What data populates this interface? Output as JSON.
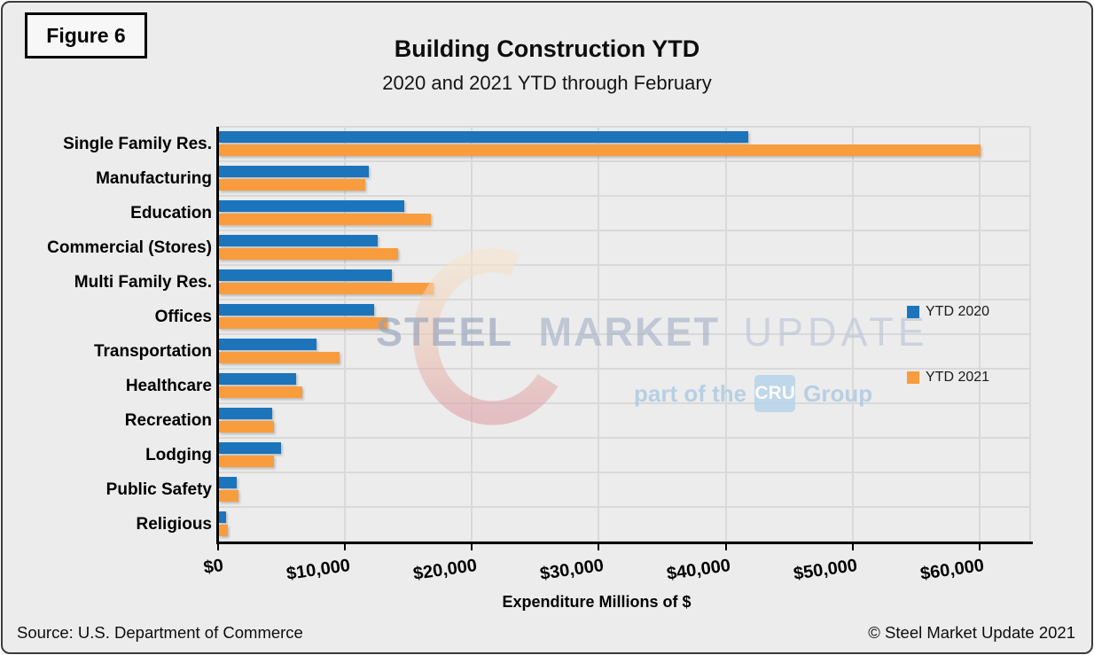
{
  "figure_label": "Figure 6",
  "title": "Building Construction YTD",
  "subtitle": "2020 and 2021 YTD through February",
  "source_note": "Source: U.S. Department of Commerce",
  "copyright_note": "© Steel Market Update 2021",
  "watermark": {
    "word1": "STEEL",
    "word2": "MARKET",
    "word3": "UPDATE",
    "tagline_prefix": "part of the",
    "tagline_badge": "CRU",
    "tagline_suffix": "Group"
  },
  "colors": {
    "ytd2020_blue": "#1C74BB",
    "ytd2021_orange": "#F99C3D",
    "background": "#ECECEC",
    "gridline": "#D9D9D9",
    "axis": "#000000"
  },
  "legend": [
    {
      "label": "YTD 2020",
      "color": "#1C74BB"
    },
    {
      "label": "YTD 2021",
      "color": "#F99C3D"
    }
  ],
  "chart_data": {
    "type": "bar",
    "orientation": "horizontal",
    "title": "Building Construction YTD",
    "subtitle": "2020 and 2021 YTD through February",
    "xlabel": "Expenditure Millions of $",
    "units": "Millions of $",
    "categories": [
      "Single Family Res.",
      "Manufacturing",
      "Education",
      "Commercial (Stores)",
      "Multi Family Res.",
      "Offices",
      "Transportation",
      "Healthcare",
      "Recreation",
      "Lodging",
      "Public Safety",
      "Religious"
    ],
    "series": [
      {
        "name": "YTD 2020",
        "color": "#1C74BB",
        "values": [
          41700,
          11800,
          14600,
          12500,
          13600,
          12200,
          7700,
          6100,
          4200,
          4900,
          1400,
          550
        ]
      },
      {
        "name": "YTD 2021",
        "color": "#F99C3D",
        "values": [
          60000,
          11500,
          16700,
          14100,
          16900,
          13300,
          9500,
          6600,
          4300,
          4300,
          1550,
          700
        ]
      }
    ],
    "x_ticks": [
      {
        "value": 0,
        "label": "$0"
      },
      {
        "value": 10000,
        "label": "$10,000"
      },
      {
        "value": 20000,
        "label": "$20,000"
      },
      {
        "value": 30000,
        "label": "$30,000"
      },
      {
        "value": 40000,
        "label": "$40,000"
      },
      {
        "value": 50000,
        "label": "$50,000"
      },
      {
        "value": 60000,
        "label": "$60,000"
      }
    ],
    "xlim": [
      0,
      64000
    ],
    "grid": true,
    "legend_position": "inside-right"
  }
}
